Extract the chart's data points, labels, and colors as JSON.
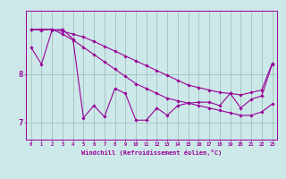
{
  "xlabel": "Windchill (Refroidissement éolien,°C)",
  "bg_color": "#cce8e8",
  "line_color": "#990099",
  "grid_color": "#99bbbb",
  "hours": [
    0,
    1,
    2,
    3,
    4,
    5,
    6,
    7,
    8,
    9,
    10,
    11,
    12,
    13,
    14,
    15,
    16,
    17,
    18,
    19,
    20,
    21,
    22,
    23
  ],
  "curve1": [
    8.55,
    8.2,
    8.9,
    8.92,
    8.72,
    7.1,
    7.35,
    7.12,
    7.7,
    7.6,
    7.05,
    7.05,
    7.3,
    7.15,
    7.35,
    7.4,
    7.42,
    7.42,
    7.35,
    7.6,
    7.3,
    7.48,
    7.55,
    8.2
  ],
  "curve2": [
    8.92,
    8.9,
    8.92,
    8.82,
    8.7,
    8.55,
    8.4,
    8.25,
    8.1,
    7.95,
    7.8,
    7.7,
    7.6,
    7.5,
    7.45,
    7.4,
    7.35,
    7.3,
    7.25,
    7.2,
    7.15,
    7.15,
    7.22,
    7.38
  ],
  "curve3": [
    8.92,
    8.92,
    8.92,
    8.88,
    8.82,
    8.76,
    8.67,
    8.57,
    8.47,
    8.37,
    8.27,
    8.17,
    8.07,
    7.97,
    7.87,
    7.77,
    7.72,
    7.67,
    7.62,
    7.6,
    7.57,
    7.62,
    7.67,
    8.22
  ],
  "yticks": [
    7.0,
    8.0
  ],
  "ylim": [
    6.65,
    9.3
  ],
  "xlim": [
    -0.5,
    23.5
  ]
}
